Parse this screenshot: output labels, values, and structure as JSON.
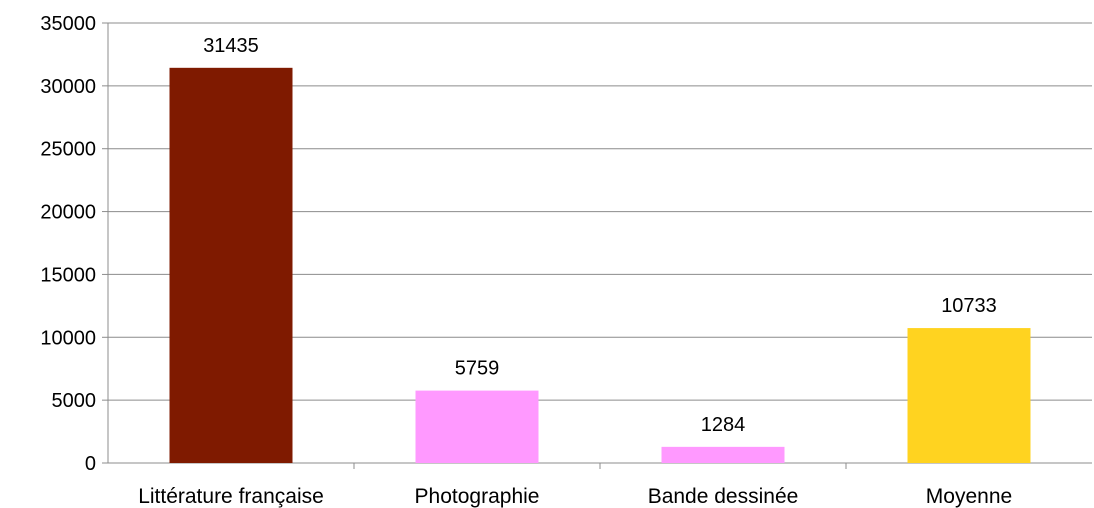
{
  "chart_data": {
    "type": "bar",
    "categories": [
      "Littérature française",
      "Photographie",
      "Bande dessinée",
      "Moyenne"
    ],
    "values": [
      31435,
      5759,
      1284,
      10733
    ],
    "colors": [
      "#7f1a00",
      "#ff99ff",
      "#ff99ff",
      "#ffd320"
    ],
    "yticks": [
      "0",
      "5000",
      "10000",
      "15000",
      "20000",
      "25000",
      "30000",
      "35000"
    ],
    "data_labels": [
      "31435",
      "5759",
      "1284",
      "10733"
    ],
    "ylim": [
      0,
      35000
    ],
    "grid": true,
    "legend": "none",
    "title": "",
    "xlabel": "",
    "ylabel": ""
  }
}
